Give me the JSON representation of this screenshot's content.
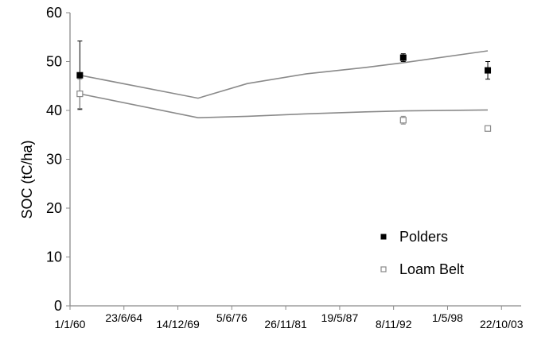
{
  "chart_data": {
    "type": "line",
    "title": "",
    "xlabel": "",
    "ylabel": "SOC (tC/ha)",
    "ylim": [
      0,
      60
    ],
    "yticks": [
      0,
      10,
      20,
      30,
      40,
      50,
      60
    ],
    "xlim": [
      "1958-01-01",
      "2003-10-22"
    ],
    "xtick_labels": [
      "1/1/60",
      "23/6/64",
      "14/12/69",
      "5/6/76",
      "26/11/81",
      "19/5/87",
      "8/11/92",
      "1/5/98",
      "22/10/03"
    ],
    "xtick_dates": [
      "1958-01-01",
      "1963-06-23",
      "1968-12-14",
      "1974-06-05",
      "1979-11-26",
      "1985-05-19",
      "1990-11-08",
      "1996-05-01",
      "2001-10-22"
    ],
    "grid": false,
    "legend_position": "bottom-right",
    "series": [
      {
        "name": "Polders",
        "color": "#000000",
        "marker": "filled-square",
        "model_line": [
          {
            "date": "1959-01-01",
            "y": 47.2
          },
          {
            "date": "1971-01-01",
            "y": 42.5
          },
          {
            "date": "1976-01-01",
            "y": 45.5
          },
          {
            "date": "1982-01-01",
            "y": 47.5
          },
          {
            "date": "1988-01-01",
            "y": 48.8
          },
          {
            "date": "1992-01-01",
            "y": 49.8
          },
          {
            "date": "2000-06-01",
            "y": 52.2
          }
        ],
        "observations": [
          {
            "date": "1959-01-01",
            "y": 47.2,
            "err": 7
          },
          {
            "date": "1991-11-01",
            "y": 50.8,
            "err": 0.8
          },
          {
            "date": "2000-06-01",
            "y": 48.2,
            "err": 1.8
          }
        ]
      },
      {
        "name": "Loam Belt",
        "color": "#888888",
        "marker": "open-square",
        "model_line": [
          {
            "date": "1959-01-01",
            "y": 43.4
          },
          {
            "date": "1971-01-01",
            "y": 38.5
          },
          {
            "date": "1976-01-01",
            "y": 38.8
          },
          {
            "date": "1982-01-01",
            "y": 39.3
          },
          {
            "date": "1988-01-01",
            "y": 39.7
          },
          {
            "date": "1992-01-01",
            "y": 39.9
          },
          {
            "date": "2000-06-01",
            "y": 40.1
          }
        ],
        "observations": [
          {
            "date": "1959-01-01",
            "y": 43.4,
            "err": 3
          },
          {
            "date": "1991-11-01",
            "y": 38.0,
            "err": 0.8
          },
          {
            "date": "2000-06-01",
            "y": 36.3,
            "err": 0.5
          }
        ]
      }
    ]
  }
}
